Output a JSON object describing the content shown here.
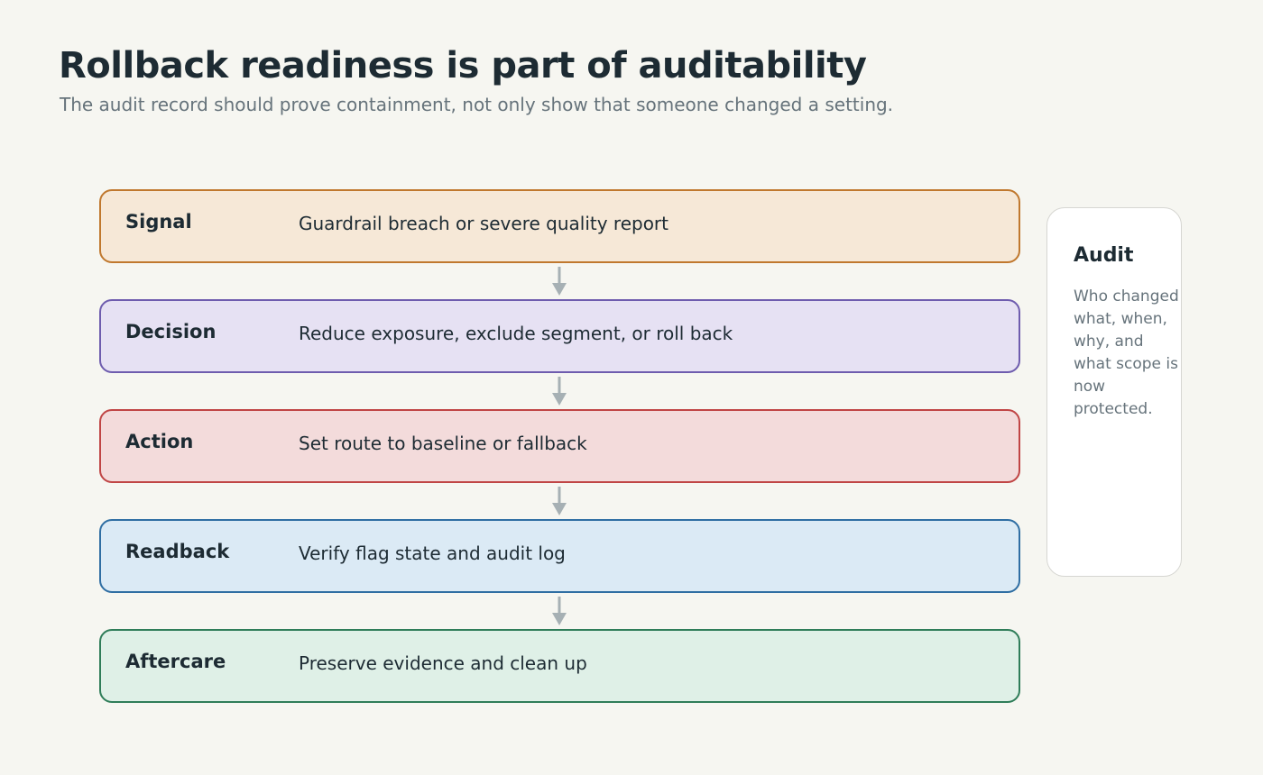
{
  "header": {
    "title": "Rollback readiness is part of auditability",
    "subtitle": "The audit record should prove containment, not only show that someone changed a setting."
  },
  "steps": [
    {
      "label": "Signal",
      "description": "Guardrail breach or severe quality report",
      "border": "#c0782e",
      "fill": "#f6e8d7"
    },
    {
      "label": "Decision",
      "description": "Reduce exposure, exclude segment, or roll back",
      "border": "#6e5cae",
      "fill": "#e6e1f3"
    },
    {
      "label": "Action",
      "description": "Set route to baseline or fallback",
      "border": "#c04545",
      "fill": "#f3dbdb"
    },
    {
      "label": "Readback",
      "description": "Verify flag state and audit log",
      "border": "#2f6ea3",
      "fill": "#dbeaf5"
    },
    {
      "label": "Aftercare",
      "description": "Preserve evidence and clean up",
      "border": "#2f7d59",
      "fill": "#dff0e7"
    }
  ],
  "connector_color": "#a6b0b4",
  "audit": {
    "title": "Audit",
    "text": "Who changed what, when, why, and what scope is now protected."
  }
}
